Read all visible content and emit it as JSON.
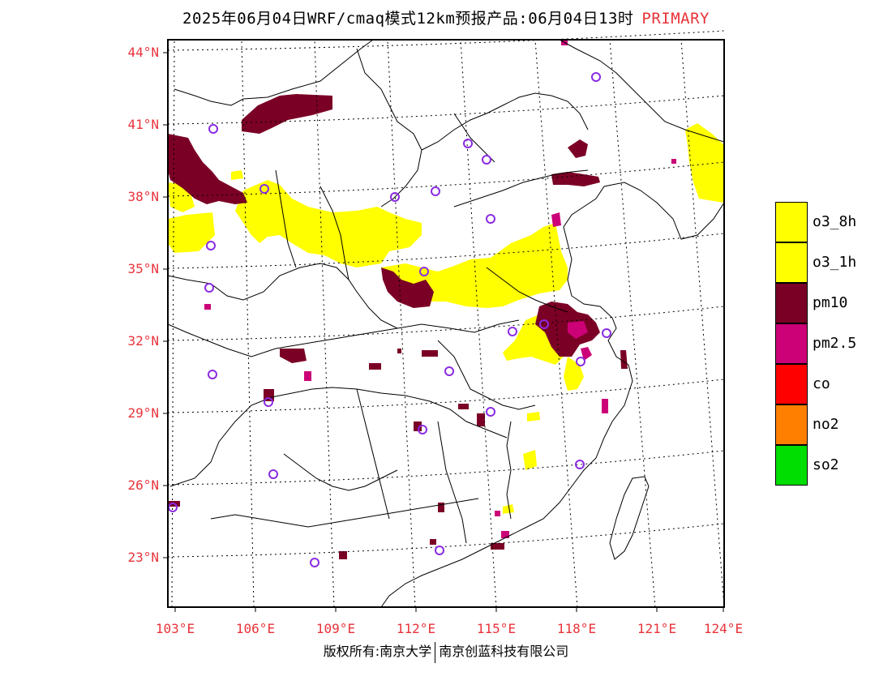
{
  "title": {
    "main": "2025年06月04日WRF/cmaq模式12km预报产品:06月04日13时",
    "primary": "PRIMARY"
  },
  "lat_labels": [
    "44°N",
    "41°N",
    "38°N",
    "35°N",
    "32°N",
    "29°N",
    "26°N",
    "23°N"
  ],
  "lon_labels": [
    "103°E",
    "106°E",
    "109°E",
    "112°E",
    "115°E",
    "118°E",
    "121°E",
    "124°E"
  ],
  "legend": [
    {
      "label": "o3_8h",
      "color": "#ffff00"
    },
    {
      "label": "o3_1h",
      "color": "#ffff00"
    },
    {
      "label": "pm10",
      "color": "#7b0026"
    },
    {
      "label": "pm2.5",
      "color": "#cc0077"
    },
    {
      "label": "co",
      "color": "#ff0000"
    },
    {
      "label": "no2",
      "color": "#ff7f00"
    },
    {
      "label": "so2",
      "color": "#00dd00"
    }
  ],
  "copyright": {
    "left": "版权所有:南京大学",
    "right": "南京创蓝科技有限公司"
  },
  "colors": {
    "label_red": "#e8333a",
    "station_circle": "#8a2be2",
    "o3": "#ffff00",
    "pm10": "#7b0026",
    "pm25": "#cc0077"
  }
}
